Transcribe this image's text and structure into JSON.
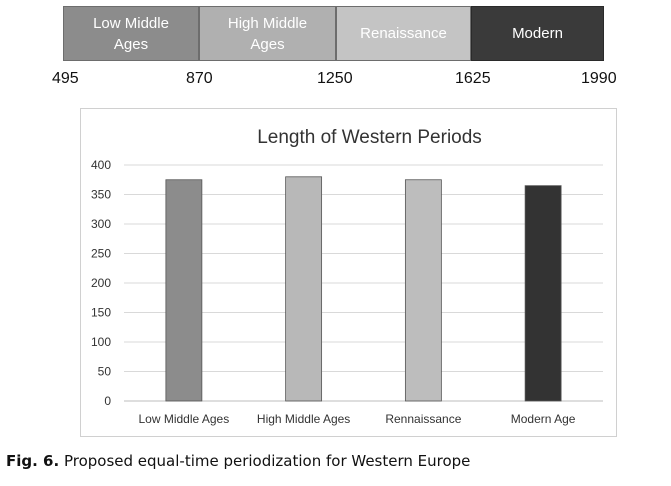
{
  "timeline": {
    "periods": [
      {
        "label": "Low Middle\nAges",
        "color": "#8c8c8c"
      },
      {
        "label": "High Middle\nAges",
        "color": "#b0b0b0"
      },
      {
        "label": "Renaissance",
        "color": "#c4c4c4"
      },
      {
        "label": "Modern",
        "color": "#3a3a3a"
      }
    ],
    "years": [
      "495",
      "870",
      "1250",
      "1625",
      "1990"
    ]
  },
  "chart_data": {
    "type": "bar",
    "title": "Length of Western Periods",
    "categories": [
      "Low Middle Ages",
      "High Middle Ages",
      "Rennaissance",
      "Modern Age"
    ],
    "values": [
      375,
      380,
      375,
      365
    ],
    "colors": [
      "#8c8c8c",
      "#b8b8b8",
      "#bdbdbd",
      "#333333"
    ],
    "ylim": [
      0,
      400
    ],
    "yticks": [
      "0",
      "50",
      "100",
      "150",
      "200",
      "250",
      "300",
      "350",
      "400"
    ],
    "grid": true,
    "xlabel": "",
    "ylabel": ""
  },
  "caption": {
    "label": "Fig. 6.",
    "text": " Proposed equal-time periodization for Western Europe"
  }
}
